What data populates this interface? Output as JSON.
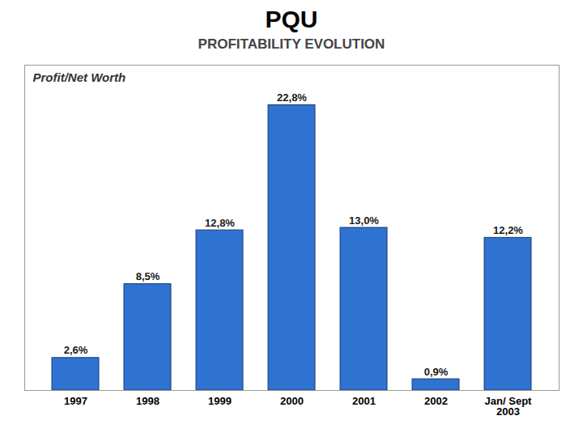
{
  "chart_data": {
    "type": "bar",
    "title": "PQU",
    "subtitle": "PROFITABILITY EVOLUTION",
    "ylabel": "Profit/Net Worth",
    "categories": [
      "1997",
      "1998",
      "1999",
      "2000",
      "2001",
      "2002",
      "Jan/ Sept\n2003"
    ],
    "values": [
      2.6,
      8.5,
      12.8,
      22.8,
      13.0,
      0.9,
      12.2
    ],
    "value_labels": [
      "2,6%",
      "8,5%",
      "12,8%",
      "22,8%",
      "13,0%",
      "0,9%",
      "12,2%"
    ],
    "data_labels": true,
    "color": "#2E73D1",
    "ylim": [
      0,
      26
    ],
    "tick_labels": "x"
  }
}
